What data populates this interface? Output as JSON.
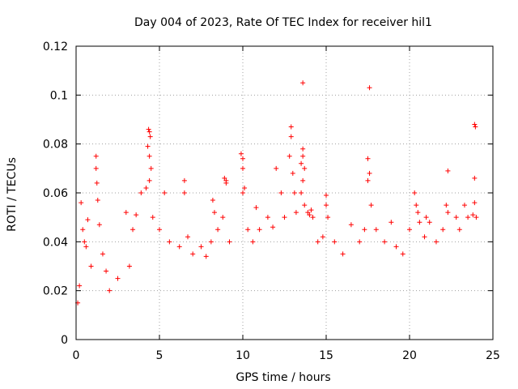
{
  "chart_data": {
    "type": "scatter",
    "title": "Day 004 of 2023, Rate Of TEC Index for receiver hil1",
    "xlabel": "GPS time / hours",
    "ylabel": "ROTI / TECUs",
    "xlim": [
      0,
      25
    ],
    "ylim": [
      0,
      0.12
    ],
    "xticks": [
      0,
      5,
      10,
      15,
      20,
      25
    ],
    "xtick_labels": [
      "0",
      "5",
      "10",
      "15",
      "20",
      "25"
    ],
    "yticks": [
      0,
      0.02,
      0.04,
      0.06,
      0.08,
      0.1,
      0.12
    ],
    "ytick_labels": [
      "0",
      "0.02",
      "0.04",
      "0.06",
      "0.08",
      "0.1",
      "0.12"
    ],
    "grid": true,
    "marker": "+",
    "color": "#ff0000",
    "series": [
      {
        "name": "ROTI",
        "points": [
          [
            0.1,
            0.015
          ],
          [
            0.2,
            0.022
          ],
          [
            0.3,
            0.056
          ],
          [
            0.4,
            0.045
          ],
          [
            0.5,
            0.04
          ],
          [
            0.6,
            0.038
          ],
          [
            0.7,
            0.049
          ],
          [
            0.9,
            0.03
          ],
          [
            1.2,
            0.075
          ],
          [
            1.2,
            0.07
          ],
          [
            1.25,
            0.064
          ],
          [
            1.3,
            0.057
          ],
          [
            1.4,
            0.047
          ],
          [
            1.6,
            0.035
          ],
          [
            1.8,
            0.028
          ],
          [
            2.0,
            0.02
          ],
          [
            2.5,
            0.025
          ],
          [
            3.0,
            0.052
          ],
          [
            3.2,
            0.03
          ],
          [
            3.4,
            0.045
          ],
          [
            3.6,
            0.051
          ],
          [
            3.9,
            0.06
          ],
          [
            4.2,
            0.062
          ],
          [
            4.35,
            0.086
          ],
          [
            4.4,
            0.085
          ],
          [
            4.45,
            0.083
          ],
          [
            4.3,
            0.079
          ],
          [
            4.4,
            0.075
          ],
          [
            4.5,
            0.07
          ],
          [
            4.4,
            0.065
          ],
          [
            4.6,
            0.05
          ],
          [
            5.0,
            0.045
          ],
          [
            5.3,
            0.06
          ],
          [
            5.6,
            0.04
          ],
          [
            6.2,
            0.038
          ],
          [
            6.5,
            0.065
          ],
          [
            6.5,
            0.06
          ],
          [
            6.7,
            0.042
          ],
          [
            7.0,
            0.035
          ],
          [
            7.5,
            0.038
          ],
          [
            7.8,
            0.034
          ],
          [
            8.1,
            0.04
          ],
          [
            8.3,
            0.052
          ],
          [
            8.2,
            0.057
          ],
          [
            8.5,
            0.045
          ],
          [
            8.8,
            0.05
          ],
          [
            8.9,
            0.066
          ],
          [
            9.0,
            0.065
          ],
          [
            9.0,
            0.064
          ],
          [
            9.2,
            0.04
          ],
          [
            9.9,
            0.076
          ],
          [
            10.0,
            0.074
          ],
          [
            10.0,
            0.07
          ],
          [
            10.1,
            0.062
          ],
          [
            10.0,
            0.06
          ],
          [
            10.3,
            0.045
          ],
          [
            10.6,
            0.04
          ],
          [
            10.8,
            0.054
          ],
          [
            11.0,
            0.045
          ],
          [
            11.5,
            0.05
          ],
          [
            11.8,
            0.046
          ],
          [
            12.0,
            0.07
          ],
          [
            12.3,
            0.06
          ],
          [
            12.5,
            0.05
          ],
          [
            12.9,
            0.087
          ],
          [
            12.9,
            0.083
          ],
          [
            12.8,
            0.075
          ],
          [
            13.0,
            0.068
          ],
          [
            13.1,
            0.06
          ],
          [
            13.2,
            0.052
          ],
          [
            13.6,
            0.105
          ],
          [
            13.6,
            0.078
          ],
          [
            13.6,
            0.075
          ],
          [
            13.5,
            0.072
          ],
          [
            13.7,
            0.07
          ],
          [
            13.6,
            0.065
          ],
          [
            13.5,
            0.06
          ],
          [
            13.7,
            0.055
          ],
          [
            13.9,
            0.052
          ],
          [
            14.0,
            0.051
          ],
          [
            14.1,
            0.053
          ],
          [
            14.2,
            0.05
          ],
          [
            14.5,
            0.04
          ],
          [
            14.8,
            0.042
          ],
          [
            15.0,
            0.059
          ],
          [
            15.0,
            0.055
          ],
          [
            15.1,
            0.05
          ],
          [
            15.5,
            0.04
          ],
          [
            16.0,
            0.035
          ],
          [
            16.5,
            0.047
          ],
          [
            17.0,
            0.04
          ],
          [
            17.3,
            0.045
          ],
          [
            17.6,
            0.103
          ],
          [
            17.5,
            0.074
          ],
          [
            17.6,
            0.068
          ],
          [
            17.5,
            0.065
          ],
          [
            17.7,
            0.055
          ],
          [
            18.0,
            0.045
          ],
          [
            18.5,
            0.04
          ],
          [
            18.9,
            0.048
          ],
          [
            19.2,
            0.038
          ],
          [
            19.6,
            0.035
          ],
          [
            20.0,
            0.045
          ],
          [
            20.3,
            0.06
          ],
          [
            20.4,
            0.055
          ],
          [
            20.5,
            0.052
          ],
          [
            20.6,
            0.048
          ],
          [
            20.9,
            0.042
          ],
          [
            21.0,
            0.05
          ],
          [
            21.2,
            0.048
          ],
          [
            21.6,
            0.04
          ],
          [
            22.0,
            0.045
          ],
          [
            22.3,
            0.069
          ],
          [
            22.2,
            0.055
          ],
          [
            22.3,
            0.052
          ],
          [
            22.8,
            0.05
          ],
          [
            23.0,
            0.045
          ],
          [
            23.3,
            0.055
          ],
          [
            23.5,
            0.05
          ],
          [
            23.8,
            0.051
          ],
          [
            23.9,
            0.088
          ],
          [
            23.95,
            0.087
          ],
          [
            23.9,
            0.066
          ],
          [
            23.9,
            0.056
          ],
          [
            24.0,
            0.05
          ]
        ]
      }
    ]
  }
}
